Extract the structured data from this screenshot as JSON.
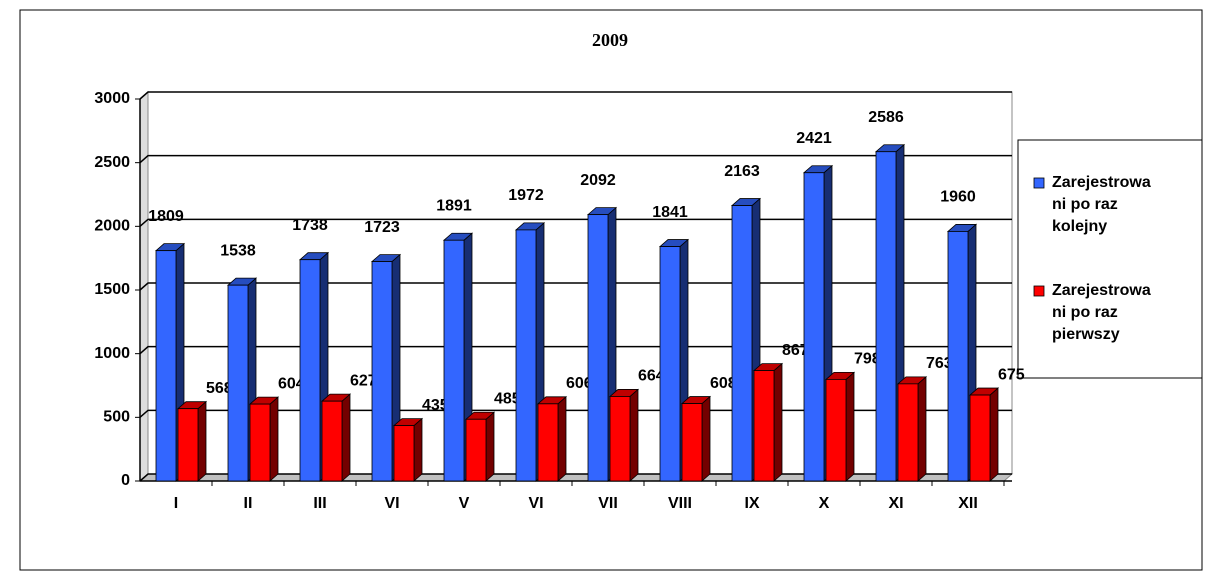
{
  "chart_data": {
    "type": "bar3d",
    "title": "2009",
    "categories": [
      "I",
      "II",
      "III",
      "VI",
      "V",
      "VI",
      "VII",
      "VIII",
      "IX",
      "X",
      "XI",
      "XII"
    ],
    "series": [
      {
        "name": "Zarejestrowani po raz kolejny",
        "color": "#3366ff",
        "values": [
          1809,
          1538,
          1738,
          1723,
          1891,
          1972,
          2092,
          1841,
          2163,
          2421,
          2586,
          1960
        ]
      },
      {
        "name": "Zarejestrowani po raz pierwszy",
        "color": "#ff0000",
        "values": [
          568,
          604,
          627,
          435,
          485,
          606,
          664,
          608,
          867,
          798,
          763,
          675
        ]
      }
    ],
    "ylim": [
      0,
      3000
    ],
    "yticks": [
      0,
      500,
      1000,
      1500,
      2000,
      2500,
      3000
    ],
    "grid": true,
    "legend": "right"
  }
}
